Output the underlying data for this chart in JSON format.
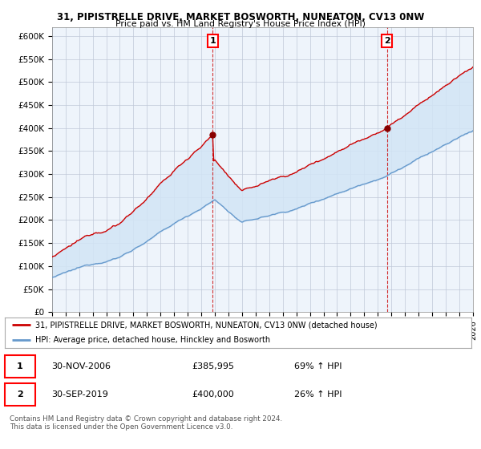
{
  "title1": "31, PIPISTRELLE DRIVE, MARKET BOSWORTH, NUNEATON, CV13 0NW",
  "title2": "Price paid vs. HM Land Registry's House Price Index (HPI)",
  "ylim": [
    0,
    620000
  ],
  "yticks": [
    0,
    50000,
    100000,
    150000,
    200000,
    250000,
    300000,
    350000,
    400000,
    450000,
    500000,
    550000,
    600000
  ],
  "background_color": "#ffffff",
  "chart_bg": "#ddeeff",
  "grid_color": "#bbbbcc",
  "hpi_color": "#6699cc",
  "price_color": "#cc0000",
  "marker1_price": 385995,
  "marker2_price": 400000,
  "legend_label1": "31, PIPISTRELLE DRIVE, MARKET BOSWORTH, NUNEATON, CV13 0NW (detached house)",
  "legend_label2": "HPI: Average price, detached house, Hinckley and Bosworth",
  "note1_date": "30-NOV-2006",
  "note1_price": "£385,995",
  "note1_hpi": "69% ↑ HPI",
  "note2_date": "30-SEP-2019",
  "note2_price": "£400,000",
  "note2_hpi": "26% ↑ HPI",
  "footer": "Contains HM Land Registry data © Crown copyright and database right 2024.\nThis data is licensed under the Open Government Licence v3.0.",
  "year_start": 1995,
  "year_end": 2025,
  "n_months": 373
}
